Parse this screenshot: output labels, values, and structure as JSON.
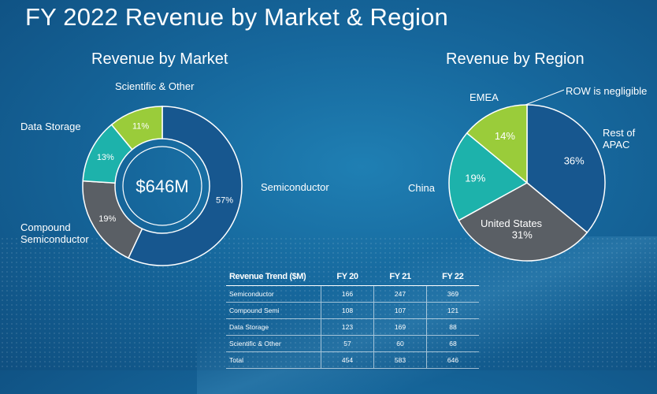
{
  "title": "FY 2022 Revenue by Market & Region",
  "colors": {
    "semiconductor": "#17578f",
    "compound": "#5a5f65",
    "data_storage": "#1db2ab",
    "scientific": "#9acc3a",
    "rest_of_apac": "#17578f",
    "united_states": "#5a5f65",
    "china": "#1db2ab",
    "emea": "#9acc3a"
  },
  "chart_data": [
    {
      "type": "pie",
      "title": "Revenue by Market",
      "center_label": "$646M",
      "slices": [
        {
          "name": "Semiconductor",
          "value": 57,
          "label": "57%"
        },
        {
          "name": "Compound Semiconductor",
          "value": 19,
          "label": "19%"
        },
        {
          "name": "Data Storage",
          "value": 13,
          "label": "13%"
        },
        {
          "name": "Scientific & Other",
          "value": 11,
          "label": "11%"
        }
      ]
    },
    {
      "type": "pie",
      "title": "Revenue by Region",
      "annotation": "ROW is negligible",
      "slices": [
        {
          "name": "Rest of APAC",
          "value": 36,
          "label": "36%"
        },
        {
          "name": "United States",
          "value": 31,
          "label": "31%"
        },
        {
          "name": "China",
          "value": 19,
          "label": "19%"
        },
        {
          "name": "EMEA",
          "value": 14,
          "label": "14%"
        }
      ]
    },
    {
      "type": "table",
      "columns": [
        "Revenue Trend ($M)",
        "FY 20",
        "FY 21",
        "FY 22"
      ],
      "rows": [
        [
          "Semiconductor",
          "166",
          "247",
          "369"
        ],
        [
          "Compound Semi",
          "108",
          "107",
          "121"
        ],
        [
          "Data Storage",
          "123",
          "169",
          "88"
        ],
        [
          "Scientific & Other",
          "57",
          "60",
          "68"
        ],
        [
          "Total",
          "454",
          "583",
          "646"
        ]
      ]
    }
  ]
}
